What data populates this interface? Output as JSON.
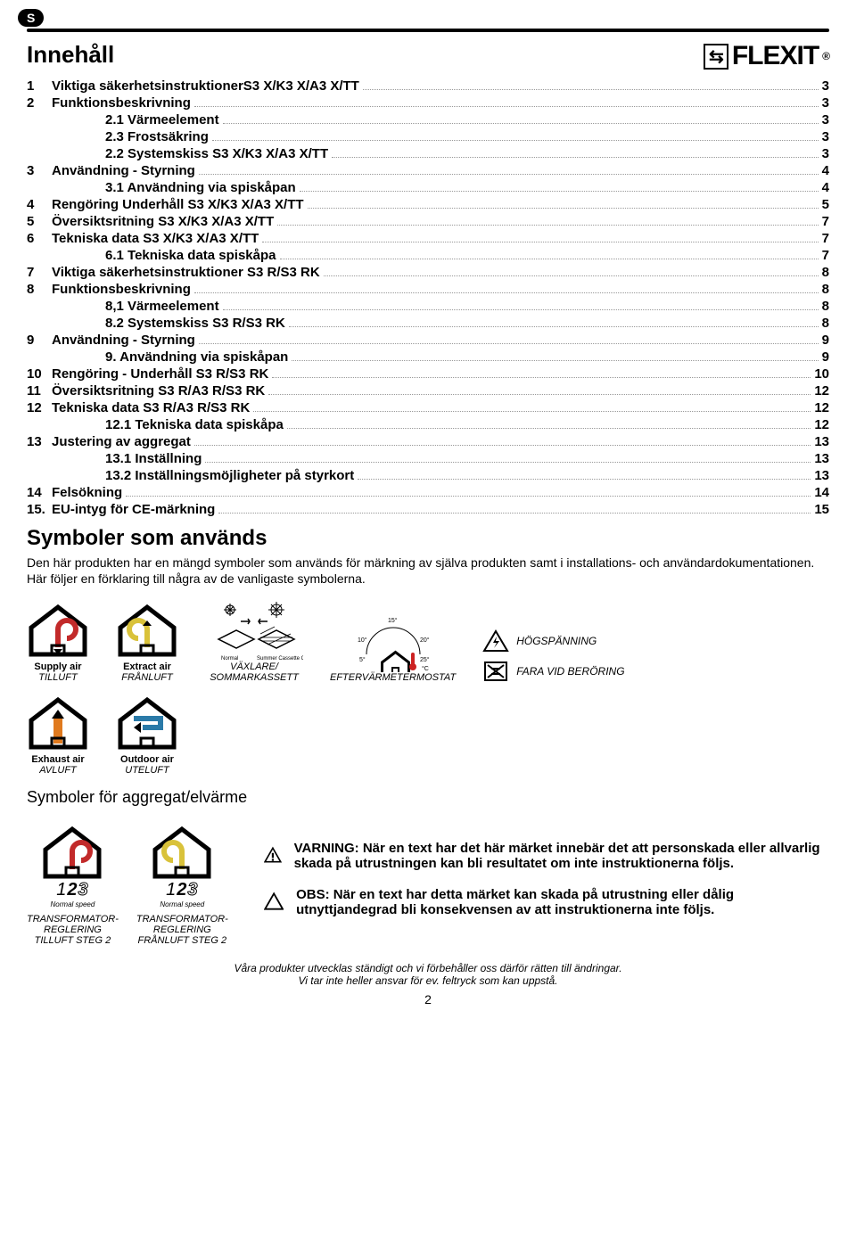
{
  "tab": "S",
  "logo": "FLEXIT",
  "title": "Innehåll",
  "toc": [
    {
      "n": "1",
      "t": "Viktiga säkerhetsinstruktionerS3 X/K3 X/A3 X/TT",
      "p": "3",
      "b": true
    },
    {
      "n": "2",
      "t": "Funktionsbeskrivning",
      "p": "3",
      "b": true
    },
    {
      "n": "",
      "t": "2.1   Värmeelement",
      "p": "3",
      "b": true,
      "sub": true
    },
    {
      "n": "",
      "t": "2.3   Frostsäkring",
      "p": "3",
      "b": true,
      "sub": true
    },
    {
      "n": "",
      "t": "2.2   Systemskiss S3 X/K3 X/A3 X/TT",
      "p": "3",
      "b": true,
      "sub": true
    },
    {
      "n": "3",
      "t": "Användning - Styrning",
      "p": "4",
      "b": true
    },
    {
      "n": "",
      "t": "3.1   Användning via spiskåpan",
      "p": "4",
      "b": true,
      "sub": true
    },
    {
      "n": "4",
      "t": "Rengöring Underhåll S3 X/K3 X/A3 X/TT",
      "p": "5",
      "b": true
    },
    {
      "n": "5",
      "t": "Översiktsritning S3 X/K3 X/A3 X/TT",
      "p": "7",
      "b": true
    },
    {
      "n": "6",
      "t": "Tekniska data S3 X/K3 X/A3 X/TT",
      "p": "7",
      "b": true
    },
    {
      "n": "",
      "t": "6.1   Tekniska data spiskåpa",
      "p": "7",
      "b": true,
      "sub": true
    },
    {
      "n": "7",
      "t": "Viktiga säkerhetsinstruktioner S3 R/S3 RK",
      "p": "8",
      "b": true
    },
    {
      "n": "8",
      "t": "Funktionsbeskrivning",
      "p": "8",
      "b": true
    },
    {
      "n": "",
      "t": "8,1   Värmeelement",
      "p": "8",
      "b": true,
      "sub": true
    },
    {
      "n": "",
      "t": "8.2   Systemskiss S3 R/S3 RK",
      "p": "8",
      "b": true,
      "sub": true
    },
    {
      "n": "9",
      "t": "Användning - Styrning",
      "p": "9",
      "b": true
    },
    {
      "n": "",
      "t": "9.     Användning via spiskåpan",
      "p": "9",
      "b": true,
      "sub": true
    },
    {
      "n": "10",
      "t": "Rengöring - Underhåll S3 R/S3 RK",
      "p": "10",
      "b": true
    },
    {
      "n": "11",
      "t": "Översiktsritning S3 R/A3 R/S3 RK",
      "p": "12",
      "b": true
    },
    {
      "n": "12",
      "t": "Tekniska data S3 R/A3 R/S3 RK",
      "p": "12",
      "b": true
    },
    {
      "n": "",
      "t": "12.1 Tekniska data spiskåpa",
      "p": "12",
      "b": true,
      "sub": true
    },
    {
      "n": "13",
      "t": "Justering av aggregat",
      "p": "13",
      "b": true
    },
    {
      "n": "",
      "t": "13.1 Inställning",
      "p": "13",
      "b": true,
      "sub": true
    },
    {
      "n": "",
      "t": "13.2 Inställningsmöjligheter på styrkort",
      "p": "13",
      "b": true,
      "sub": true
    },
    {
      "n": "14",
      "t": "Felsökning",
      "p": "14",
      "b": true
    },
    {
      "n": "15.",
      "t": "EU-intyg för CE-märkning",
      "p": "15",
      "b": true
    }
  ],
  "symbolsTitle": "Symboler som används",
  "symbolsIntro": "Den här produkten har en mängd symboler som används för märkning av själva produkten samt i installations- och användardokumentationen. Här följer en förklaring till några av de vanligaste symbolerna.",
  "row1": {
    "supply": {
      "en": "Supply air",
      "sv": "TILLUFT",
      "color": "#c22a2a"
    },
    "extract": {
      "en": "Extract air",
      "sv": "FRÅNLUFT",
      "color": "#d9c23a"
    },
    "filter": {
      "sv": "VÄXLARE/\nSOMMARKASSETT",
      "small1": "Normal",
      "small2": "Summer Cassette Option"
    },
    "thermostat": {
      "sv": "EFTERVÄRMETERMOSTAT",
      "marks": [
        "5°",
        "10°",
        "15°",
        "20°",
        "25°",
        "°C"
      ]
    },
    "hogsp": "HÖGSPÄNNING",
    "fara": "FARA VID BERÖRING"
  },
  "row2": {
    "exhaust": {
      "en": "Exhaust air",
      "sv": "AVLUFT",
      "color": "#e07a1e"
    },
    "outdoor": {
      "en": "Outdoor air",
      "sv": "UTELUFT",
      "color": "#2a7aa8"
    }
  },
  "subTitle2": "Symboler för aggregat/elvärme",
  "row3": {
    "left": {
      "sv": "TRANSFORMATOR-\nREGLERING\nTILLUFT STEG 2",
      "num": "123",
      "ns": "Normal speed",
      "color": "#c22a2a"
    },
    "right": {
      "sv": "TRANSFORMATOR-\nREGLERING\nFRÅNLUFT STEG 2",
      "num": "123",
      "ns": "Normal speed",
      "color": "#d9c23a"
    }
  },
  "warning": {
    "w": "VARNING:  När en text har det här märket innebär det att personskada eller allvarlig skada på utrustningen kan bli resultatet om inte instruktionerna följs.",
    "o": "OBS: När en text har detta märket kan skada på utrustning eller dålig utnyttjandegrad bli konsekvensen av att instruktionerna inte följs."
  },
  "footer1": "Våra produkter utvecklas ständigt och vi förbehåller oss därför rätten till ändringar.",
  "footer2": "Vi tar inte heller ansvar för ev. feltryck som kan uppstå.",
  "pageNum": "2",
  "colors": {
    "text": "#000000",
    "bg": "#ffffff"
  }
}
